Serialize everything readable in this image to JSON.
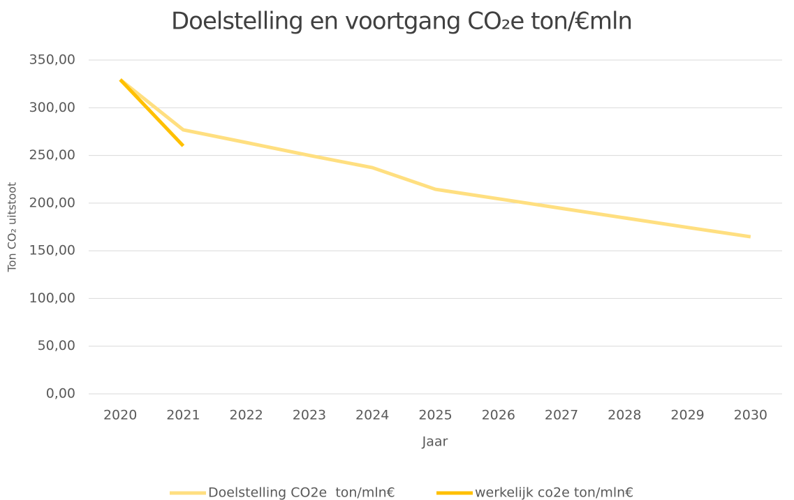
{
  "chart_data": {
    "type": "line",
    "title": "Doelstelling en voortgang CO₂e ton/€mln",
    "x_label": "Jaar",
    "y_label": "Ton CO₂ uitstoot",
    "categories": [
      "2020",
      "2021",
      "2022",
      "2023",
      "2024",
      "2025",
      "2026",
      "2027",
      "2028",
      "2029",
      "2030"
    ],
    "series": [
      {
        "name": "Doelstelling CO2e  ton/mln€",
        "color": "#ffdf80",
        "values": [
          329.5,
          276.8,
          263.5,
          250,
          237.2,
          214.5,
          204.5,
          194.5,
          184.5,
          174.5,
          164.7
        ]
      },
      {
        "name": "werkelijk co2e ton/mln€",
        "color": "#ffc000",
        "values": [
          329.5,
          260,
          null,
          null,
          null,
          null,
          null,
          null,
          null,
          null,
          null
        ]
      }
    ],
    "ylim": [
      0,
      350
    ],
    "yticks": [
      {
        "value": 0,
        "label": "0,00"
      },
      {
        "value": 50,
        "label": "50,00"
      },
      {
        "value": 100,
        "label": "100,00"
      },
      {
        "value": 150,
        "label": "150,00"
      },
      {
        "value": 200,
        "label": "200,00"
      },
      {
        "value": 250,
        "label": "250,00"
      },
      {
        "value": 300,
        "label": "300,00"
      },
      {
        "value": 350,
        "label": "350,00"
      }
    ],
    "grid": true,
    "legend": "bottom"
  }
}
